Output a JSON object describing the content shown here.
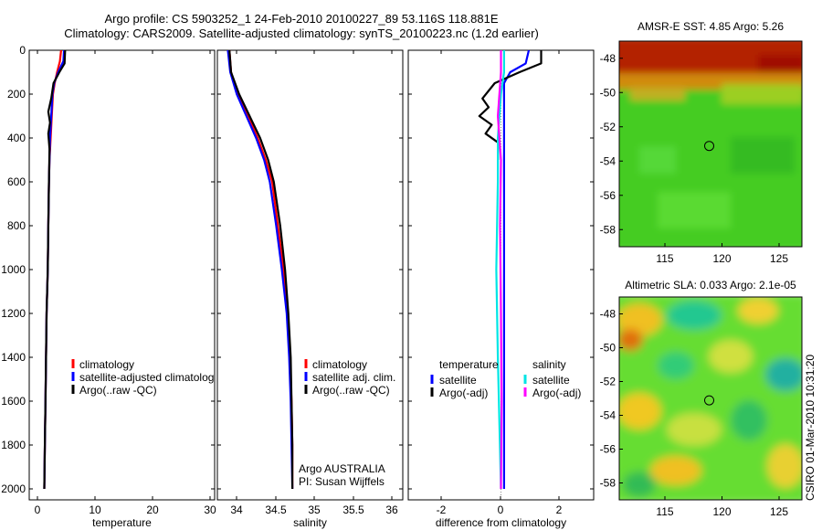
{
  "title": {
    "line1": "Argo profile: CS 5903252_1 24-Feb-2010 20100227_89 53.116S 118.881E",
    "line2": "Climatology: CARS2009. Satellite-adjusted climatology: synTS_20100223.nc (1.2d earlier)"
  },
  "chart_data": [
    {
      "type": "line",
      "xlabel": "temperature",
      "xlim": [
        -1,
        31
      ],
      "xticks": [
        "0",
        "10",
        "20",
        "30"
      ],
      "ylim": [
        0,
        2050
      ],
      "yticks": [
        "0",
        "200",
        "400",
        "600",
        "800",
        "1000",
        "1200",
        "1400",
        "1600",
        "1800",
        "2000"
      ],
      "legend": [
        "climatology",
        "satellite-adjusted climatolog",
        "Argo(..raw -QC)"
      ],
      "series": [
        {
          "name": "climatology",
          "color": "#ff0000",
          "points": [
            [
              4.5,
              0
            ],
            [
              4.3,
              50
            ],
            [
              3.8,
              100
            ],
            [
              3.4,
              150
            ],
            [
              3.1,
              200
            ],
            [
              2.9,
              300
            ],
            [
              2.7,
              400
            ],
            [
              2.5,
              500
            ],
            [
              2.4,
              600
            ],
            [
              2.3,
              800
            ],
            [
              2.2,
              1000
            ],
            [
              2.0,
              1200
            ],
            [
              1.9,
              1400
            ],
            [
              1.8,
              1600
            ],
            [
              1.7,
              1800
            ],
            [
              1.6,
              2000
            ]
          ]
        },
        {
          "name": "satellite-adjusted climatolog",
          "color": "#0000ff",
          "points": [
            [
              5.0,
              0
            ],
            [
              4.9,
              50
            ],
            [
              4.0,
              100
            ],
            [
              3.3,
              150
            ],
            [
              3.0,
              200
            ],
            [
              2.8,
              300
            ],
            [
              2.6,
              400
            ],
            [
              2.5,
              500
            ],
            [
              2.4,
              600
            ],
            [
              2.3,
              800
            ],
            [
              2.2,
              1000
            ],
            [
              2.0,
              1200
            ],
            [
              1.9,
              1400
            ],
            [
              1.8,
              1600
            ],
            [
              1.7,
              1800
            ],
            [
              1.6,
              2000
            ]
          ]
        },
        {
          "name": "Argo(..raw -QC)",
          "color": "#000000",
          "points": [
            [
              5.2,
              0
            ],
            [
              5.1,
              60
            ],
            [
              4.2,
              100
            ],
            [
              3.2,
              150
            ],
            [
              2.8,
              220
            ],
            [
              2.3,
              280
            ],
            [
              2.6,
              330
            ],
            [
              2.3,
              380
            ],
            [
              2.5,
              450
            ],
            [
              2.4,
              600
            ],
            [
              2.3,
              800
            ],
            [
              2.2,
              1000
            ],
            [
              2.0,
              1200
            ],
            [
              1.9,
              1400
            ],
            [
              1.8,
              1600
            ],
            [
              1.7,
              1800
            ],
            [
              1.6,
              2000
            ]
          ]
        }
      ]
    },
    {
      "type": "line",
      "xlabel": "salinity",
      "xlim": [
        33.8,
        36.1
      ],
      "xticks": [
        "34",
        "34.5",
        "35",
        "35.5",
        "36"
      ],
      "ylim": [
        0,
        2050
      ],
      "legend": [
        "climatology",
        "satellite adj. clim.",
        "Argo(..raw -QC)"
      ],
      "annotation": [
        "Argo AUSTRALIA",
        "PI: Susan Wijffels"
      ],
      "series": [
        {
          "name": "climatology",
          "color": "#ff0000",
          "points": [
            [
              33.95,
              0
            ],
            [
              33.97,
              100
            ],
            [
              34.05,
              200
            ],
            [
              34.18,
              300
            ],
            [
              34.3,
              400
            ],
            [
              34.4,
              500
            ],
            [
              34.48,
              600
            ],
            [
              34.55,
              800
            ],
            [
              34.62,
              1000
            ],
            [
              34.67,
              1200
            ],
            [
              34.7,
              1400
            ],
            [
              34.72,
              1600
            ],
            [
              34.73,
              1800
            ],
            [
              34.73,
              2000
            ]
          ]
        },
        {
          "name": "satellite adj. clim.",
          "color": "#0000ff",
          "points": [
            [
              33.93,
              0
            ],
            [
              33.96,
              100
            ],
            [
              34.04,
              200
            ],
            [
              34.16,
              300
            ],
            [
              34.28,
              400
            ],
            [
              34.38,
              500
            ],
            [
              34.45,
              600
            ],
            [
              34.53,
              800
            ],
            [
              34.6,
              1000
            ],
            [
              34.66,
              1200
            ],
            [
              34.69,
              1400
            ],
            [
              34.71,
              1600
            ],
            [
              34.72,
              1800
            ],
            [
              34.73,
              2000
            ]
          ]
        },
        {
          "name": "Argo(..raw -QC)",
          "color": "#000000",
          "points": [
            [
              33.95,
              0
            ],
            [
              33.97,
              100
            ],
            [
              34.07,
              200
            ],
            [
              34.2,
              300
            ],
            [
              34.33,
              400
            ],
            [
              34.43,
              500
            ],
            [
              34.5,
              600
            ],
            [
              34.58,
              800
            ],
            [
              34.64,
              1000
            ],
            [
              34.68,
              1200
            ],
            [
              34.71,
              1400
            ],
            [
              34.72,
              1600
            ],
            [
              34.73,
              1800
            ],
            [
              34.73,
              2000
            ]
          ]
        }
      ]
    },
    {
      "type": "line",
      "xlabel": "difference from climatology",
      "xlim": [
        -3,
        3
      ],
      "xticks": [
        "-2",
        "0",
        "2"
      ],
      "ylim": [
        0,
        2050
      ],
      "legend_groups": [
        {
          "title": "temperature",
          "items": [
            "satellite",
            "Argo(-adj)"
          ]
        },
        {
          "title": "salinity",
          "items": [
            "satellite",
            "Argo(-adj)"
          ]
        }
      ],
      "series": [
        {
          "name": "temperature satellite",
          "color": "#0000ff",
          "points": [
            [
              0.9,
              0
            ],
            [
              0.8,
              60
            ],
            [
              0.3,
              100
            ],
            [
              0.1,
              150
            ],
            [
              0.1,
              300
            ],
            [
              0.1,
              600
            ],
            [
              0.1,
              1000
            ],
            [
              0.1,
              1400
            ],
            [
              0.1,
              2000
            ]
          ]
        },
        {
          "name": "temperature Argo(-adj)",
          "color": "#000000",
          "points": [
            [
              1.3,
              0
            ],
            [
              1.3,
              60
            ],
            [
              0.6,
              100
            ],
            [
              -0.2,
              150
            ],
            [
              -0.6,
              220
            ],
            [
              -0.4,
              260
            ],
            [
              -0.7,
              300
            ],
            [
              -0.3,
              340
            ],
            [
              -0.5,
              380
            ],
            [
              -0.1,
              420
            ],
            [
              -0.1,
              500
            ]
          ]
        },
        {
          "name": "salinity satellite",
          "color": "#00e5e5",
          "points": [
            [
              0.1,
              0
            ],
            [
              0.1,
              100
            ],
            [
              0.0,
              200
            ],
            [
              -0.1,
              400
            ],
            [
              -0.1,
              600
            ],
            [
              -0.15,
              1000
            ],
            [
              -0.1,
              1400
            ],
            [
              0.0,
              2000
            ]
          ]
        },
        {
          "name": "salinity Argo(-adj)",
          "color": "#ff00ff",
          "points": [
            [
              0.0,
              0
            ],
            [
              0.0,
              100
            ],
            [
              -0.05,
              200
            ],
            [
              -0.1,
              300
            ],
            [
              -0.05,
              400
            ],
            [
              0.0,
              500
            ],
            [
              -0.03,
              800
            ],
            [
              0.0,
              1200
            ],
            [
              0.02,
              1600
            ],
            [
              0.0,
              2000
            ]
          ]
        }
      ]
    },
    {
      "type": "heatmap",
      "title": "AMSR-E SST: 4.85 Argo: 5.26",
      "xlim": [
        111,
        127
      ],
      "ylim": [
        -59,
        -47
      ],
      "xticks": [
        "115",
        "120",
        "125"
      ],
      "yticks": [
        "-48",
        "-50",
        "-52",
        "-54",
        "-56",
        "-58"
      ],
      "marker": [
        118.881,
        -53.116
      ]
    },
    {
      "type": "heatmap",
      "title": "Altimetric SLA: 0.033 Argo: 2.1e-05",
      "xlim": [
        111,
        127
      ],
      "ylim": [
        -59,
        -47
      ],
      "xticks": [
        "115",
        "120",
        "125"
      ],
      "yticks": [
        "-48",
        "-50",
        "-52",
        "-54",
        "-56",
        "-58"
      ],
      "marker": [
        118.881,
        -53.116
      ]
    }
  ],
  "side_label": "CSIRO 01-Mar-2010 10:31:20"
}
